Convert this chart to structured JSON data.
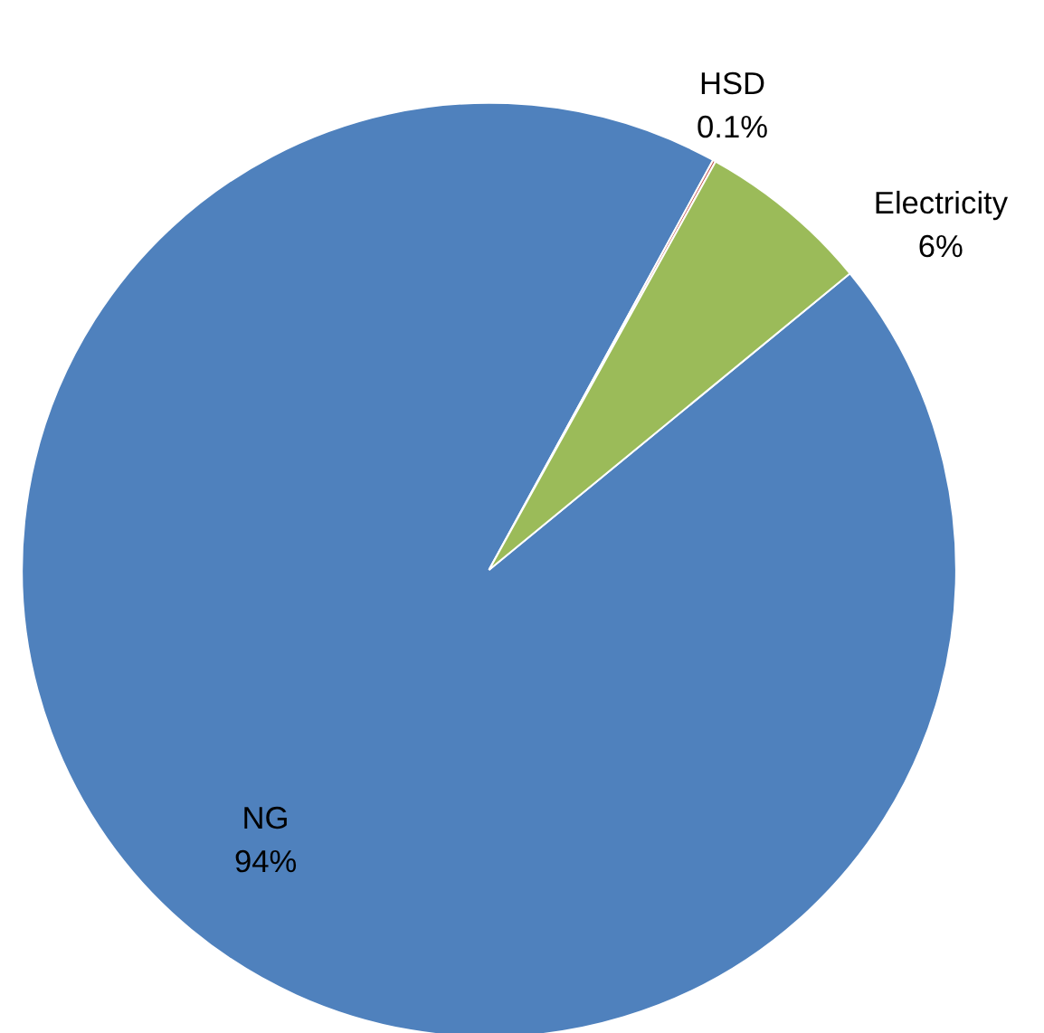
{
  "chart_data": {
    "type": "pie",
    "categories": [
      "NG",
      "HSD",
      "Electricity"
    ],
    "values": [
      94,
      0.1,
      6
    ],
    "colors": [
      "#4f81bd",
      "#c0504d",
      "#9bbb59"
    ],
    "value_labels": [
      "94%",
      "0.1%",
      "6%"
    ]
  }
}
